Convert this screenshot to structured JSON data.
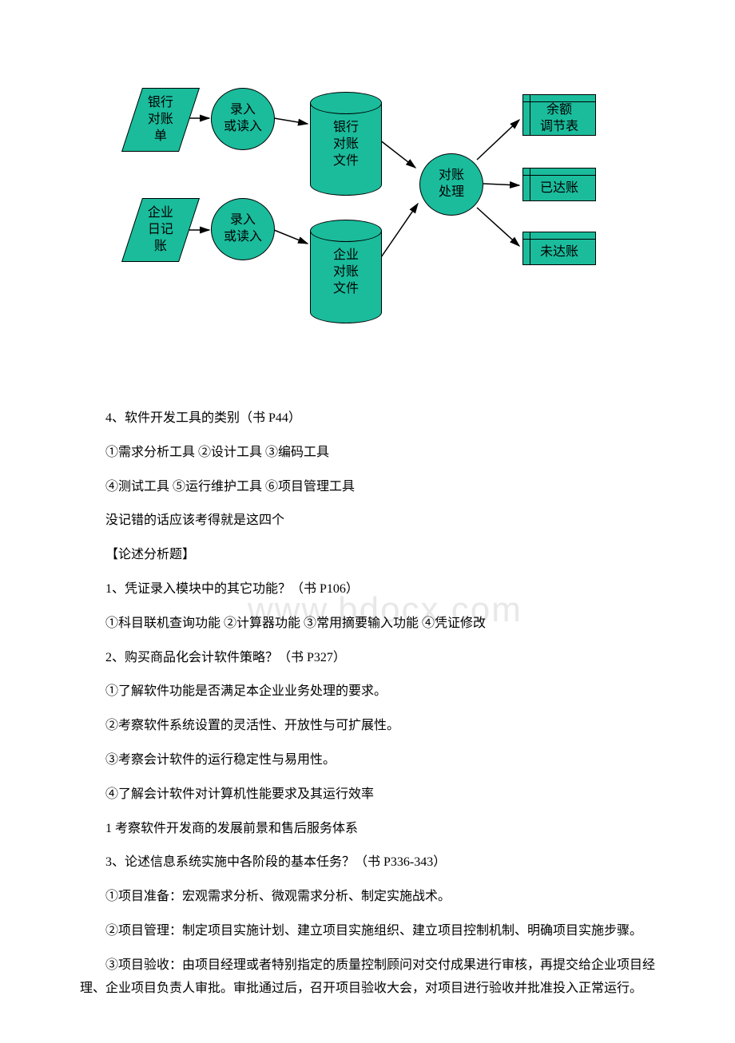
{
  "diagram": {
    "shape_fill": "#1abc9c",
    "shape_stroke": "#000000",
    "arrow_stroke": "#000000",
    "nodes": {
      "para1": {
        "label": "银行\n对账\n单"
      },
      "para2": {
        "label": "企业\n日记\n账"
      },
      "circ1": {
        "label": "录入\n或读入"
      },
      "circ2": {
        "label": "录入\n或读入"
      },
      "cyl1": {
        "label": "银行\n对账\n文件"
      },
      "cyl2": {
        "label": "企业\n对账\n文件"
      },
      "circ3": {
        "label": "对账\n处理"
      },
      "out1": {
        "label": "余额\n调节表"
      },
      "out2": {
        "label": "已达账"
      },
      "out3": {
        "label": "未达账"
      }
    }
  },
  "body": {
    "p1": "4、软件开发工具的类别（书 P44）",
    "p2": "①需求分析工具 ②设计工具 ③编码工具",
    "p3": "④测试工具 ⑤运行维护工具 ⑥项目管理工具",
    "p4": "没记错的话应该考得就是这四个",
    "p5": "【论述分析题】",
    "p6": "1、凭证录入模块中的其它功能？（书 P106）",
    "p7": "①科目联机查询功能 ②计算器功能 ③常用摘要输入功能 ④凭证修改",
    "p8": "2、购买商品化会计软件策略？（书 P327）",
    "p9": "①了解软件功能是否满足本企业业务处理的要求。",
    "p10": "②考察软件系统设置的灵活性、开放性与可扩展性。",
    "p11": "③考察会计软件的运行稳定性与易用性。",
    "p12": "④了解会计软件对计算机性能要求及其运行效率",
    "p13": "1 考察软件开发商的发展前景和售后服务体系",
    "p14": "3、论述信息系统实施中各阶段的基本任务？（书 P336-343）",
    "p15": "①项目准备：宏观需求分析、微观需求分析、制定实施战术。",
    "p16": "②项目管理：制定项目实施计划、建立项目实施组织、建立项目控制机制、明确项目实施步骤。",
    "p17": "③项目验收：由项目经理或者特别指定的质量控制顾问对交付成果进行审核，再提交给企业项目经理、企业项目负责人审批。审批通过后，召开项目验收大会，对项目进行验收并批准投入正常运行。"
  },
  "watermark": "www.bdocx.com"
}
